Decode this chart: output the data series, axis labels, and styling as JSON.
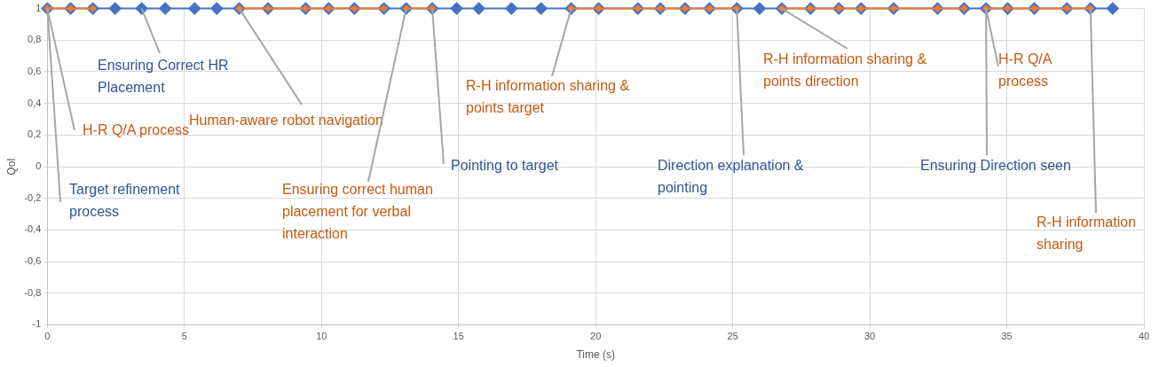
{
  "chart_data": {
    "type": "line",
    "xlabel": "Time (s)",
    "ylabel": "QoI",
    "xlim": [
      0,
      40
    ],
    "xticks": [
      0,
      5,
      10,
      15,
      20,
      25,
      30,
      35,
      40
    ],
    "ylim": [
      -1,
      1
    ],
    "yticks": [
      {
        "value": -1,
        "label": "-1"
      },
      {
        "value": -0.8,
        "label": "-0,8"
      },
      {
        "value": -0.6,
        "label": "-0,6"
      },
      {
        "value": -0.4,
        "label": "-0,4"
      },
      {
        "value": -0.2,
        "label": "-0,2"
      },
      {
        "value": 0,
        "label": "0"
      },
      {
        "value": 0.2,
        "label": "0,2"
      },
      {
        "value": 0.4,
        "label": "0,4"
      },
      {
        "value": 0.6,
        "label": "0,6"
      },
      {
        "value": 0.8,
        "label": "0,8"
      },
      {
        "value": 1,
        "label": "1"
      }
    ],
    "grid": true,
    "legend": false,
    "marker": "diamond",
    "line_style": "solid",
    "series": [
      {
        "color": "#4472c4",
        "x": [
          0,
          0.85,
          1.66,
          2.47,
          3.44,
          4.3,
          5.37,
          6.18,
          7.0,
          8.05,
          9.42,
          10.26,
          11.2,
          12.28,
          13.09,
          14.04,
          14.93,
          15.74,
          16.93,
          18.01,
          19.11,
          20.11,
          21.54,
          22.36,
          23.26,
          24.15,
          25.15,
          25.98,
          26.79,
          27.84,
          28.87,
          29.68,
          30.87,
          32.47,
          33.44,
          34.24,
          35.03,
          36.0,
          37.19,
          38.05,
          38.86
        ],
        "values": [
          1,
          1,
          1,
          1,
          1,
          1,
          1,
          1,
          1,
          1,
          1,
          1,
          1,
          1,
          1,
          1,
          1,
          1,
          1,
          1,
          1,
          1,
          1,
          1,
          1,
          1,
          1,
          1,
          1,
          1,
          1,
          1,
          1,
          1,
          1,
          1,
          1,
          1,
          1,
          1,
          1
        ]
      },
      {
        "color": "#ed7d31",
        "x": [
          0,
          0.85,
          1.66,
          2.0,
          7.0,
          8.05,
          9.42,
          10.26,
          11.2,
          12.28,
          12.7,
          13.09,
          14.04,
          15.0,
          19.11,
          20.11,
          21.54,
          22.36,
          23.26,
          24.15,
          25.15,
          26.0,
          26.79,
          27.84,
          28.87,
          29.68,
          30.87,
          32.47,
          33.44,
          33.8,
          34.24,
          35.03,
          36.0,
          37.19,
          38.05
        ],
        "values": [
          1,
          1,
          1,
          null,
          1,
          1,
          1,
          1,
          1,
          1,
          null,
          1,
          1,
          null,
          1,
          1,
          1,
          1,
          1,
          1,
          1,
          null,
          1,
          1,
          1,
          1,
          1,
          1,
          1,
          null,
          1,
          1,
          1,
          1,
          1
        ]
      }
    ],
    "annotations": [
      {
        "text": "Target refinement process",
        "x": 0,
        "y": 1
      },
      {
        "text": "H-R Q/A process",
        "x": 0,
        "y": 1
      },
      {
        "text": "Ensuring Correct HR Placement",
        "x": 3.44,
        "y": 1
      },
      {
        "text": "Human-aware robot navigation",
        "x": 7.0,
        "y": 1
      },
      {
        "text": "Ensuring correct human placement for verbal interaction",
        "x": 13.09,
        "y": 1
      },
      {
        "text": "Pointing to target",
        "x": 14.04,
        "y": 1
      },
      {
        "text": "R-H information sharing & points target",
        "x": 19.11,
        "y": 1
      },
      {
        "text": "Direction explanation & pointing",
        "x": 25.15,
        "y": 1
      },
      {
        "text": "R-H information sharing & points direction",
        "x": 26.79,
        "y": 1
      },
      {
        "text": "H-R Q/A process",
        "x": 34.24,
        "y": 1
      },
      {
        "text": "Ensuring Direction seen",
        "x": 34.24,
        "y": 1
      },
      {
        "text": "R-H information sharing",
        "x": 38.05,
        "y": 1
      }
    ]
  }
}
